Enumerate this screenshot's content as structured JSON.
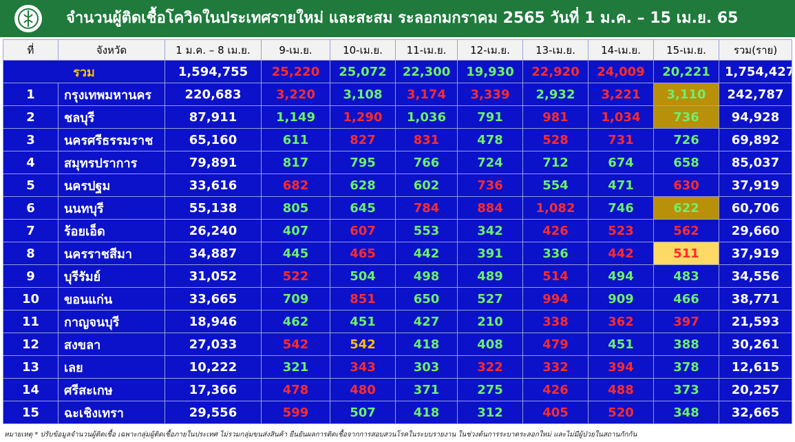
{
  "header": {
    "title": "จำนวนผู้ติดเชื้อโควิดในประเทศรายใหม่ และสะสม ระลอกมกราคม 2565 วันที่ 1 ม.ค. – 15 เม.ย. 65"
  },
  "palette": {
    "white": "#ffffff",
    "red": "#ff2b2b",
    "green": "#6cf06c",
    "orange": "#ffc000",
    "gold": "#b8900a",
    "lightyellow": "#ffd966",
    "blue": "#0b12c9"
  },
  "table": {
    "header": [
      "ที่",
      "จังหวัด",
      "1 ม.ค. – 8 เม.ย.",
      "9-เม.ย.",
      "10-เม.ย.",
      "11-เม.ย.",
      "12-เม.ย.",
      "13-เม.ย.",
      "14-เม.ย.",
      "15-เม.ย.",
      "รวม(ราย)"
    ],
    "total": {
      "label": "รวม",
      "label_color": "orange",
      "values": [
        "1,594,755",
        "25,220",
        "25,072",
        "22,300",
        "19,930",
        "22,920",
        "24,009",
        "20,221",
        "1,754,427"
      ],
      "colors": [
        "white",
        "red",
        "green",
        "green",
        "green",
        "red",
        "red",
        "green",
        "white"
      ]
    },
    "rows": [
      {
        "no": "1",
        "province": "กรุงเทพมหานคร",
        "values": [
          "220,683",
          "3,220",
          "3,108",
          "3,174",
          "3,339",
          "2,932",
          "3,221",
          "3,110",
          "242,787"
        ],
        "colors": [
          "white",
          "red",
          "green",
          "red",
          "red",
          "green",
          "red",
          "green",
          "white"
        ],
        "highlight": "gold"
      },
      {
        "no": "2",
        "province": "ชลบุรี",
        "values": [
          "87,911",
          "1,149",
          "1,290",
          "1,036",
          "791",
          "981",
          "1,034",
          "736",
          "94,928"
        ],
        "colors": [
          "white",
          "green",
          "red",
          "green",
          "green",
          "red",
          "red",
          "green",
          "white"
        ],
        "highlight": "gold"
      },
      {
        "no": "3",
        "province": "นครศรีธรรมราช",
        "values": [
          "65,160",
          "611",
          "827",
          "831",
          "478",
          "528",
          "731",
          "726",
          "69,892"
        ],
        "colors": [
          "white",
          "green",
          "red",
          "red",
          "green",
          "red",
          "red",
          "green",
          "white"
        ]
      },
      {
        "no": "4",
        "province": "สมุทรปราการ",
        "values": [
          "79,891",
          "817",
          "795",
          "766",
          "724",
          "712",
          "674",
          "658",
          "85,037"
        ],
        "colors": [
          "white",
          "green",
          "green",
          "green",
          "green",
          "green",
          "green",
          "green",
          "white"
        ]
      },
      {
        "no": "5",
        "province": "นครปฐม",
        "values": [
          "33,616",
          "682",
          "628",
          "602",
          "736",
          "554",
          "471",
          "630",
          "37,919"
        ],
        "colors": [
          "white",
          "red",
          "green",
          "green",
          "red",
          "green",
          "green",
          "red",
          "white"
        ]
      },
      {
        "no": "6",
        "province": "นนทบุรี",
        "values": [
          "55,138",
          "805",
          "645",
          "784",
          "884",
          "1,082",
          "746",
          "622",
          "60,706"
        ],
        "colors": [
          "white",
          "green",
          "green",
          "red",
          "red",
          "red",
          "green",
          "green",
          "white"
        ],
        "highlight": "gold"
      },
      {
        "no": "7",
        "province": "ร้อยเอ็ด",
        "values": [
          "26,240",
          "407",
          "607",
          "553",
          "342",
          "426",
          "523",
          "562",
          "29,660"
        ],
        "colors": [
          "white",
          "green",
          "red",
          "green",
          "green",
          "red",
          "red",
          "red",
          "white"
        ]
      },
      {
        "no": "8",
        "province": "นครราชสีมา",
        "values": [
          "34,887",
          "445",
          "465",
          "442",
          "391",
          "336",
          "442",
          "511",
          "37,919"
        ],
        "colors": [
          "white",
          "green",
          "red",
          "green",
          "green",
          "green",
          "red",
          "red",
          "white"
        ],
        "highlight": "lightyellow"
      },
      {
        "no": "9",
        "province": "บุรีรัมย์",
        "values": [
          "31,052",
          "522",
          "504",
          "498",
          "489",
          "514",
          "494",
          "483",
          "34,556"
        ],
        "colors": [
          "white",
          "red",
          "green",
          "green",
          "green",
          "red",
          "green",
          "green",
          "white"
        ]
      },
      {
        "no": "10",
        "province": "ขอนแก่น",
        "values": [
          "33,665",
          "709",
          "851",
          "650",
          "527",
          "994",
          "909",
          "466",
          "38,771"
        ],
        "colors": [
          "white",
          "green",
          "red",
          "green",
          "green",
          "red",
          "green",
          "green",
          "white"
        ]
      },
      {
        "no": "11",
        "province": "กาญจนบุรี",
        "values": [
          "18,946",
          "462",
          "451",
          "427",
          "210",
          "338",
          "362",
          "397",
          "21,593"
        ],
        "colors": [
          "white",
          "green",
          "green",
          "green",
          "green",
          "red",
          "red",
          "red",
          "white"
        ]
      },
      {
        "no": "12",
        "province": "สงขลา",
        "values": [
          "27,033",
          "542",
          "542",
          "418",
          "408",
          "479",
          "451",
          "388",
          "30,261"
        ],
        "colors": [
          "white",
          "red",
          "orange",
          "green",
          "green",
          "red",
          "green",
          "green",
          "white"
        ]
      },
      {
        "no": "13",
        "province": "เลย",
        "values": [
          "10,222",
          "321",
          "343",
          "303",
          "322",
          "332",
          "394",
          "378",
          "12,615"
        ],
        "colors": [
          "white",
          "green",
          "red",
          "green",
          "red",
          "red",
          "red",
          "green",
          "white"
        ]
      },
      {
        "no": "14",
        "province": "ศรีสะเกษ",
        "values": [
          "17,366",
          "478",
          "480",
          "371",
          "275",
          "426",
          "488",
          "373",
          "20,257"
        ],
        "colors": [
          "white",
          "red",
          "red",
          "green",
          "green",
          "red",
          "red",
          "green",
          "white"
        ]
      },
      {
        "no": "15",
        "province": "ฉะเชิงเทรา",
        "values": [
          "29,556",
          "599",
          "507",
          "418",
          "312",
          "405",
          "520",
          "348",
          "32,665"
        ],
        "colors": [
          "white",
          "red",
          "green",
          "green",
          "green",
          "red",
          "red",
          "green",
          "white"
        ]
      }
    ]
  },
  "footnote": "หมายเหตุ * ปรับข้อมูลจำนวนผู้ติดเชื้อ เฉพาะกลุ่มผู้ติดเชื้อภายในประเทศ ไม่รวมกลุ่มขนส่งสินค้า ยืนยันผลการติดเชื้อจากการสอบสวนโรคในระบบรายงาน ในช่วงต้นการระบาดระลอกใหม่ และไม่มีผู้ป่วยในสถานกักกัน"
}
